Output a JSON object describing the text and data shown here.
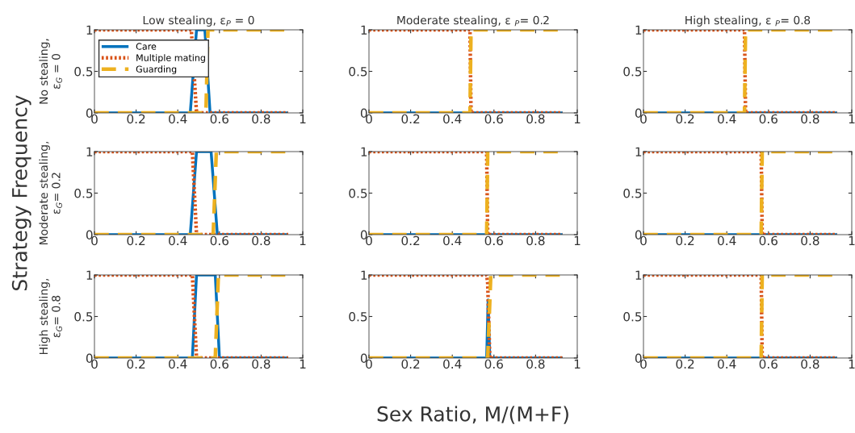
{
  "chart_data": [
    {
      "type": "line",
      "title": "Low stealing, ε$_{P}$ = 0",
      "ylabel": "No stealing,\nε$_{G}$ = 0",
      "xlim": [
        0,
        1
      ],
      "ylim": [
        0,
        1
      ],
      "xticks": [
        0,
        0.2,
        0.4,
        0.6,
        0.8,
        1
      ],
      "yticks": [
        0,
        0.5,
        1
      ],
      "legend": "top left",
      "grid": false,
      "series": [
        {
          "name": "Care",
          "color": "#0072bd",
          "line_style": "solid",
          "x": [
            0,
            0.46,
            0.49,
            0.53,
            0.555,
            0.93
          ],
          "values": [
            0,
            0,
            1,
            1,
            0,
            0
          ]
        },
        {
          "name": "Multiple mating",
          "color": "#d95319",
          "line_style": "dotted",
          "x": [
            0,
            0.465,
            0.49,
            0.93
          ],
          "values": [
            1,
            1,
            0,
            0
          ]
        },
        {
          "name": "Guarding",
          "color": "#edb120",
          "line_style": "dashed",
          "x": [
            0,
            0.535,
            0.545,
            0.93
          ],
          "values": [
            0,
            0,
            1,
            1
          ]
        }
      ]
    },
    {
      "type": "line",
      "title": "Moderate stealing, ε $_{P}$= 0.2",
      "xlim": [
        0,
        1
      ],
      "ylim": [
        0,
        1
      ],
      "xticks": [
        0,
        0.2,
        0.4,
        0.6,
        0.8,
        1
      ],
      "yticks": [
        0,
        0.5,
        1
      ],
      "grid": false,
      "series": [
        {
          "color": "#0072bd",
          "line_style": "solid",
          "x": [
            0,
            0.93
          ],
          "values": [
            0,
            0
          ]
        },
        {
          "color": "#d95319",
          "line_style": "dotted",
          "x": [
            0,
            0.485,
            0.49,
            0.93
          ],
          "values": [
            1,
            1,
            0,
            0
          ]
        },
        {
          "color": "#edb120",
          "line_style": "dashed",
          "x": [
            0,
            0.485,
            0.49,
            0.93
          ],
          "values": [
            0,
            0,
            1,
            1
          ]
        }
      ]
    },
    {
      "type": "line",
      "title": "High stealing, ε $_{P}$= 0.8",
      "xlim": [
        0,
        1
      ],
      "ylim": [
        0,
        1
      ],
      "xticks": [
        0,
        0.2,
        0.4,
        0.6,
        0.8,
        1
      ],
      "yticks": [
        0,
        0.5,
        1
      ],
      "grid": false,
      "series": [
        {
          "color": "#0072bd",
          "line_style": "solid",
          "x": [
            0,
            0.93
          ],
          "values": [
            0,
            0
          ]
        },
        {
          "color": "#d95319",
          "line_style": "dotted",
          "x": [
            0,
            0.485,
            0.49,
            0.93
          ],
          "values": [
            1,
            1,
            0,
            0
          ]
        },
        {
          "color": "#edb120",
          "line_style": "dashed",
          "x": [
            0,
            0.485,
            0.49,
            0.93
          ],
          "values": [
            0,
            0,
            1,
            1
          ]
        }
      ]
    },
    {
      "type": "line",
      "ylabel": "Moderate stealing,\nε$_{G}$= 0.2",
      "annotations": [
        "Strategy Frequency"
      ],
      "xlim": [
        0,
        1
      ],
      "ylim": [
        0,
        1
      ],
      "xticks": [
        0,
        0.2,
        0.4,
        0.6,
        0.8,
        1
      ],
      "yticks": [
        0,
        0.5,
        1
      ],
      "grid": false,
      "series": [
        {
          "color": "#0072bd",
          "line_style": "solid",
          "x": [
            0,
            0.46,
            0.49,
            0.56,
            0.59,
            0.93
          ],
          "values": [
            0,
            0,
            1,
            1,
            0,
            0
          ]
        },
        {
          "color": "#d95319",
          "line_style": "dotted",
          "x": [
            0,
            0.47,
            0.49,
            0.93
          ],
          "values": [
            1,
            1,
            0,
            0
          ]
        },
        {
          "color": "#edb120",
          "line_style": "dashed",
          "x": [
            0,
            0.57,
            0.585,
            0.93
          ],
          "values": [
            0,
            0,
            1,
            1
          ]
        }
      ]
    },
    {
      "type": "line",
      "xlim": [
        0,
        1
      ],
      "ylim": [
        0,
        1
      ],
      "xticks": [
        0,
        0.2,
        0.4,
        0.6,
        0.8,
        1
      ],
      "yticks": [
        0,
        0.5,
        1
      ],
      "grid": false,
      "series": [
        {
          "color": "#0072bd",
          "line_style": "solid",
          "x": [
            0,
            0.93
          ],
          "values": [
            0,
            0
          ]
        },
        {
          "color": "#d95319",
          "line_style": "dotted",
          "x": [
            0,
            0.565,
            0.57,
            0.93
          ],
          "values": [
            1,
            1,
            0,
            0
          ]
        },
        {
          "color": "#edb120",
          "line_style": "dashed",
          "x": [
            0,
            0.565,
            0.57,
            0.93
          ],
          "values": [
            0,
            0,
            1,
            1
          ]
        }
      ]
    },
    {
      "type": "line",
      "xlim": [
        0,
        1
      ],
      "ylim": [
        0,
        1
      ],
      "xticks": [
        0,
        0.2,
        0.4,
        0.6,
        0.8,
        1
      ],
      "yticks": [
        0,
        0.5,
        1
      ],
      "grid": false,
      "series": [
        {
          "color": "#0072bd",
          "line_style": "solid",
          "x": [
            0,
            0.93
          ],
          "values": [
            0,
            0
          ]
        },
        {
          "color": "#d95319",
          "line_style": "dotted",
          "x": [
            0,
            0.565,
            0.57,
            0.93
          ],
          "values": [
            1,
            1,
            0,
            0
          ]
        },
        {
          "color": "#edb120",
          "line_style": "dashed",
          "x": [
            0,
            0.565,
            0.57,
            0.93
          ],
          "values": [
            0,
            0,
            1,
            1
          ]
        }
      ]
    },
    {
      "type": "line",
      "ylabel": "High stealing,\nε$_{G}$= 0.8",
      "xlim": [
        0,
        1
      ],
      "ylim": [
        0,
        1
      ],
      "xticks": [
        0,
        0.2,
        0.4,
        0.6,
        0.8,
        1
      ],
      "yticks": [
        0,
        0.5,
        1
      ],
      "grid": false,
      "series": [
        {
          "color": "#0072bd",
          "line_style": "solid",
          "x": [
            0,
            0.47,
            0.49,
            0.58,
            0.6,
            0.93
          ],
          "values": [
            0,
            0,
            1,
            1,
            0,
            0
          ]
        },
        {
          "color": "#d95319",
          "line_style": "dotted",
          "x": [
            0,
            0.47,
            0.49,
            0.93
          ],
          "values": [
            1,
            1,
            0,
            0
          ]
        },
        {
          "color": "#edb120",
          "line_style": "dashed",
          "x": [
            0,
            0.58,
            0.595,
            0.93
          ],
          "values": [
            0,
            0,
            1,
            1
          ]
        }
      ]
    },
    {
      "type": "line",
      "annotations": [
        "Sex Ratio, M/(M+F)"
      ],
      "xlim": [
        0,
        1
      ],
      "ylim": [
        0,
        1
      ],
      "xticks": [
        0,
        0.2,
        0.4,
        0.6,
        0.8,
        1
      ],
      "yticks": [
        0,
        0.5,
        1
      ],
      "grid": false,
      "series": [
        {
          "color": "#0072bd",
          "line_style": "solid",
          "x": [
            0,
            0.565,
            0.572,
            0.58,
            0.93
          ],
          "values": [
            0,
            0,
            0.7,
            0,
            0
          ]
        },
        {
          "color": "#d95319",
          "line_style": "dotted",
          "x": [
            0,
            0.565,
            0.57,
            0.58,
            0.93
          ],
          "values": [
            1,
            1,
            0.9,
            0,
            0
          ]
        },
        {
          "color": "#edb120",
          "line_style": "dashed",
          "x": [
            0,
            0.57,
            0.585,
            0.93
          ],
          "values": [
            0,
            0,
            1,
            1
          ]
        }
      ]
    },
    {
      "type": "line",
      "xlim": [
        0,
        1
      ],
      "ylim": [
        0,
        1
      ],
      "xticks": [
        0,
        0.2,
        0.4,
        0.6,
        0.8,
        1
      ],
      "yticks": [
        0,
        0.5,
        1
      ],
      "grid": false,
      "series": [
        {
          "color": "#0072bd",
          "line_style": "solid",
          "x": [
            0,
            0.93
          ],
          "values": [
            0,
            0
          ]
        },
        {
          "color": "#d95319",
          "line_style": "dotted",
          "x": [
            0,
            0.565,
            0.57,
            0.93
          ],
          "values": [
            1,
            1,
            0,
            0
          ]
        },
        {
          "color": "#edb120",
          "line_style": "dashed",
          "x": [
            0,
            0.565,
            0.57,
            0.93
          ],
          "values": [
            0,
            0,
            1,
            1
          ]
        }
      ]
    }
  ]
}
